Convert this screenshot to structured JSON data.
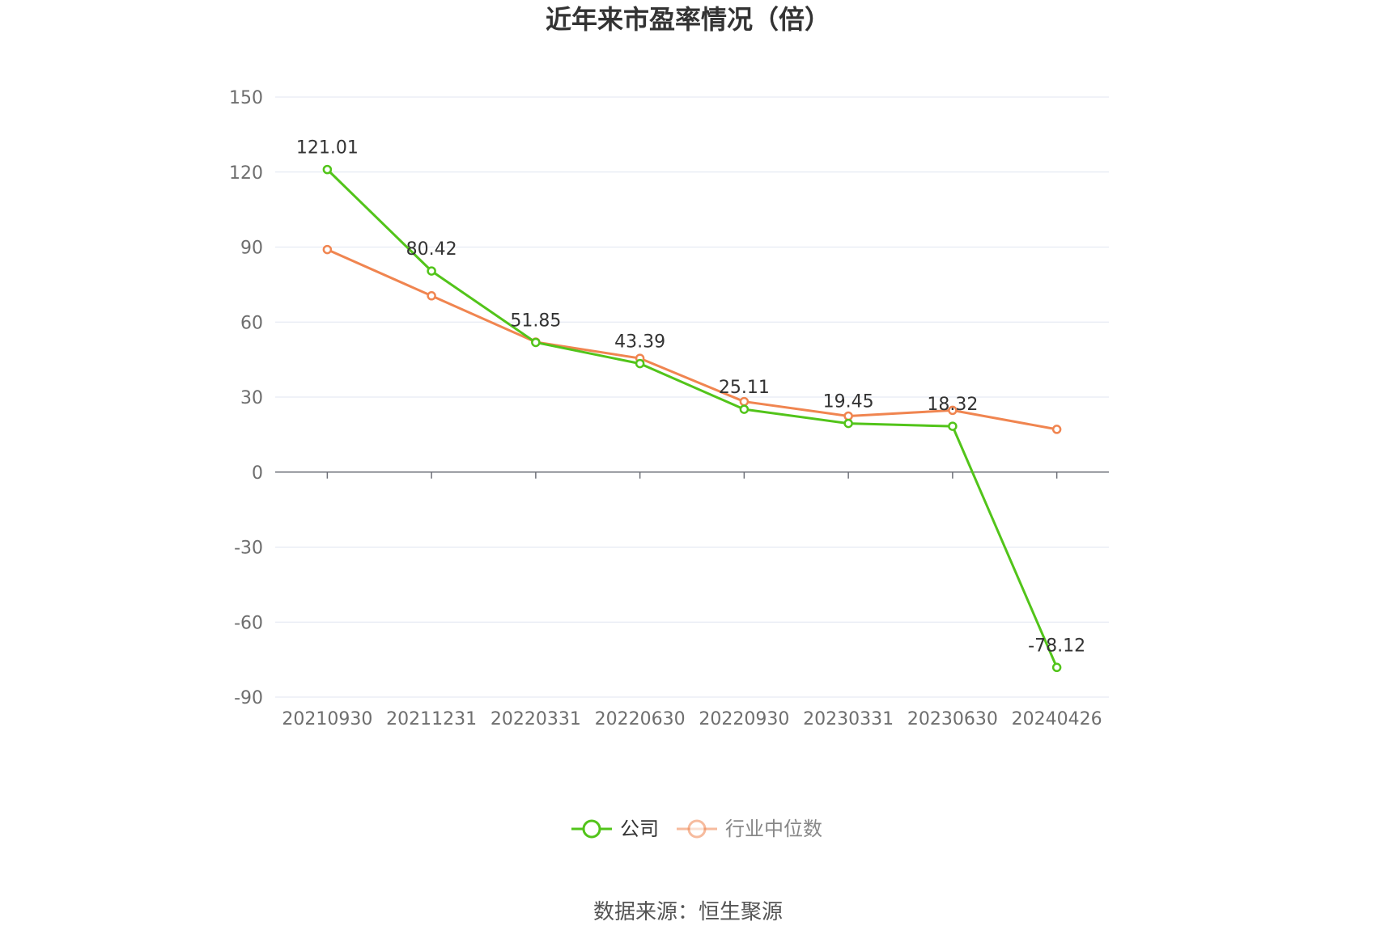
{
  "chart_data": {
    "type": "line",
    "title": "近年来市盈率情况（倍）",
    "categories": [
      "20210930",
      "20211231",
      "20220331",
      "20220630",
      "20220930",
      "20230331",
      "20230630",
      "20240426"
    ],
    "ylim": [
      -90,
      150
    ],
    "yticks": [
      150,
      120,
      90,
      60,
      30,
      0,
      -30,
      -60,
      -90
    ],
    "grid": true,
    "legend_position": "bottom-center",
    "series": [
      {
        "name": "公司",
        "color": "#52c41a",
        "values": [
          121.01,
          80.42,
          51.85,
          43.39,
          25.11,
          19.45,
          18.32,
          -78.12
        ],
        "labels": [
          "121.01",
          "80.42",
          "51.85",
          "43.39",
          "25.11",
          "19.45",
          "18.32",
          "-78.12"
        ]
      },
      {
        "name": "行业中位数",
        "color": "#f08550",
        "values": [
          89.0,
          70.5,
          52.0,
          45.5,
          28.2,
          22.4,
          24.7,
          17.1
        ]
      }
    ]
  },
  "legend": {
    "company_label": "公司",
    "industry_label": "行业中位数"
  },
  "source_text": "数据来源：恒生聚源"
}
